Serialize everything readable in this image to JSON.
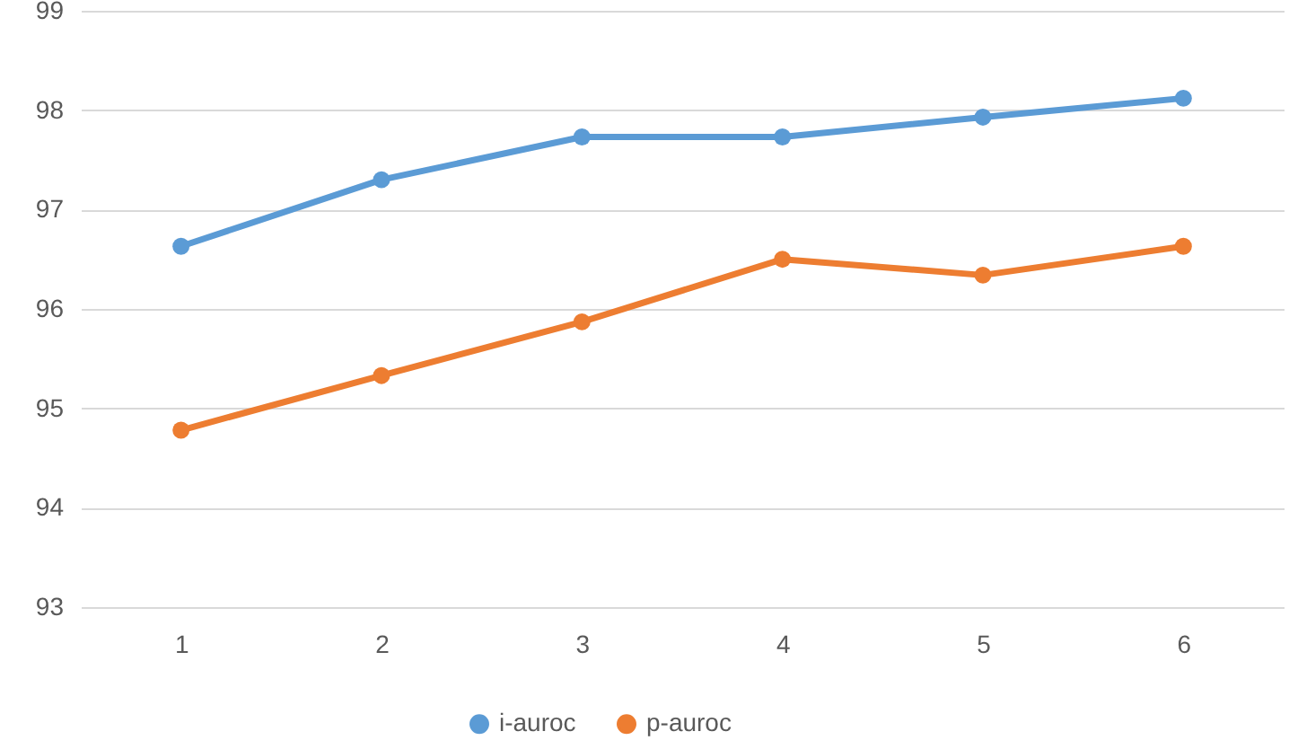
{
  "chart_data": {
    "type": "line",
    "categories": [
      "1",
      "2",
      "3",
      "4",
      "5",
      "6"
    ],
    "series": [
      {
        "name": "i-auroc",
        "color": "#5b9bd5",
        "values": [
          96.63,
          97.3,
          97.73,
          97.73,
          97.93,
          98.12
        ]
      },
      {
        "name": "p-auroc",
        "color": "#ed7d31",
        "values": [
          94.78,
          95.33,
          95.87,
          96.5,
          96.34,
          96.63
        ]
      }
    ],
    "ylim": [
      93,
      99
    ],
    "yticks": [
      93,
      94,
      95,
      96,
      97,
      98,
      99
    ],
    "grid": "y",
    "legend": "bottom",
    "marker": "circle",
    "line_style": "solid"
  }
}
